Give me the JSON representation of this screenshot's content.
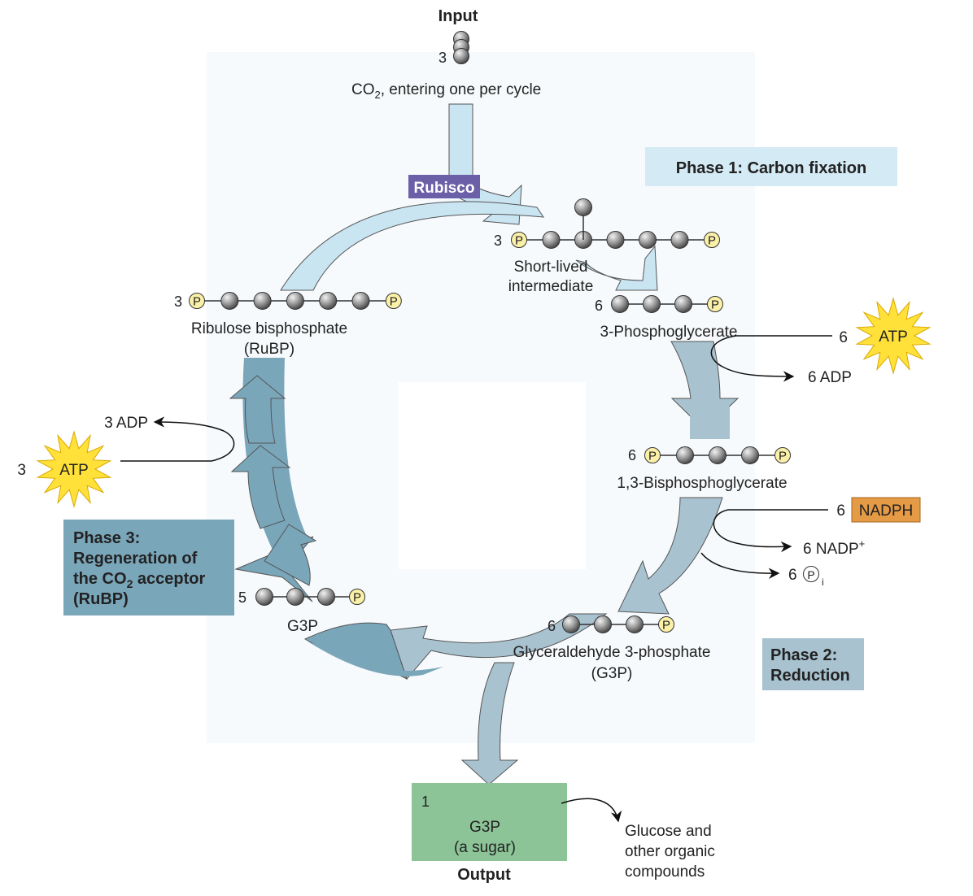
{
  "input": {
    "title": "Input",
    "count": "3",
    "co2_prefix": "CO",
    "co2_sub": "2",
    "co2_rest": ", entering one per cycle"
  },
  "enzyme": {
    "rubisco": "Rubisco"
  },
  "phases": {
    "phase1": "Phase 1: Carbon fixation",
    "phase2_line1": "Phase 2:",
    "phase2_line2": "Reduction",
    "phase3_line1": "Phase 3:",
    "phase3_line2": "Regeneration of",
    "phase3_line3a": "the CO",
    "phase3_line3sub": "2",
    "phase3_line3b": " acceptor",
    "phase3_line4": "(RuBP)"
  },
  "molecules": {
    "intermediate": {
      "count": "3",
      "label1": "Short-lived",
      "label2": "intermediate"
    },
    "pga": {
      "count": "6",
      "label": "3-Phosphoglycerate"
    },
    "bpg": {
      "count": "6",
      "label": "1,3-Bisphosphoglycerate"
    },
    "g3p6": {
      "count": "6",
      "label1": "Glyceraldehyde 3-phosphate",
      "label2": "(G3P)"
    },
    "g3p5": {
      "count": "5",
      "label": "G3P"
    },
    "rubp": {
      "count": "3",
      "label1": "Ribulose bisphosphate",
      "label2": "(RuBP)"
    },
    "output": {
      "count": "1",
      "label1": "G3P",
      "label2": "(a sugar)",
      "title": "Output"
    }
  },
  "cofactors": {
    "atp6": {
      "count": "6",
      "label": "ATP"
    },
    "adp6": "6 ADP",
    "nadph": {
      "count": "6",
      "label": "NADPH"
    },
    "nadp": {
      "text": "6 NADP",
      "sup": "+"
    },
    "pi": {
      "count": "6",
      "symbol": "P",
      "sub": "i"
    },
    "adp3": "3 ADP",
    "atp3": {
      "count": "3",
      "label": "ATP"
    }
  },
  "phosphate_symbol": "P",
  "glucose": {
    "line1": "Glucose and",
    "line2": "other organic",
    "line3": "compounds"
  },
  "colors": {
    "phase1_bg": "#d4eaf4",
    "phase2_bg": "#a8c2d0",
    "phase3_bg": "#7aa6ba",
    "output_bg": "#8cc497",
    "nadph_bg": "#e59a45",
    "rubisco_bg": "#6b5fa8",
    "atp_star": "#ffe13a",
    "phosphate": "#faf0a8",
    "carbon": "#8c8c8c"
  }
}
